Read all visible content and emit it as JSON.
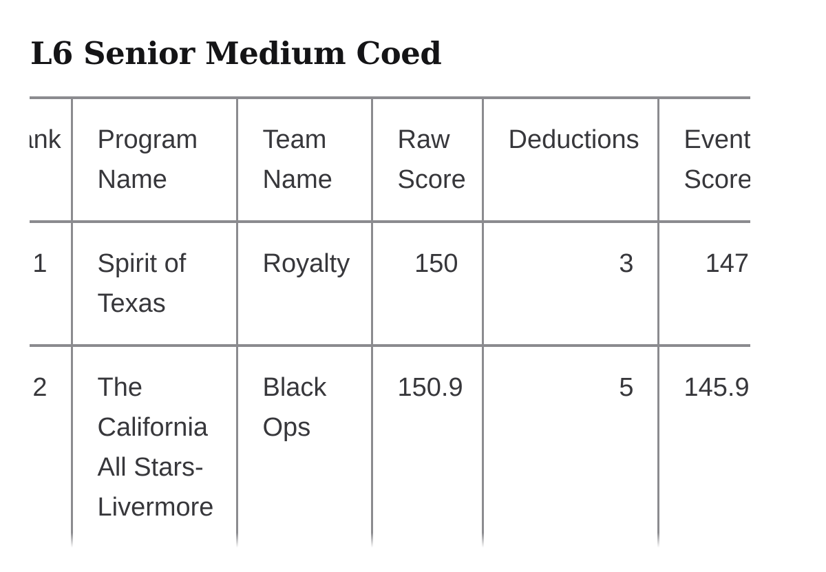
{
  "page": {
    "title": "L6 Senior Medium Coed"
  },
  "colors": {
    "background": "#ffffff",
    "title_text": "#141416",
    "body_text": "#37373b",
    "table_border": "#8b8b8f"
  },
  "table": {
    "columns": [
      {
        "key": "rank",
        "label": "Rank",
        "align": "right",
        "note": "partially clipped at left edge, only 'nk' visible"
      },
      {
        "key": "program",
        "label": "Program\nName",
        "align": "left"
      },
      {
        "key": "team",
        "label": "Team\nName",
        "align": "left"
      },
      {
        "key": "raw",
        "label": "Raw\nScore",
        "align": "right"
      },
      {
        "key": "deductions",
        "label": "Deductions",
        "align": "right"
      },
      {
        "key": "event",
        "label": "Event\nScore",
        "align": "right"
      }
    ],
    "rows": [
      {
        "rank": "1",
        "program": "Spirit of\nTexas",
        "team": "Royalty",
        "raw": "150",
        "deductions": "3",
        "event": "147"
      },
      {
        "rank": "2",
        "program": "The\nCalifornia\nAll Stars-\nLivermore",
        "team": "Black\nOps",
        "raw": "150.9",
        "deductions": "5",
        "event": "145.9"
      }
    ]
  }
}
